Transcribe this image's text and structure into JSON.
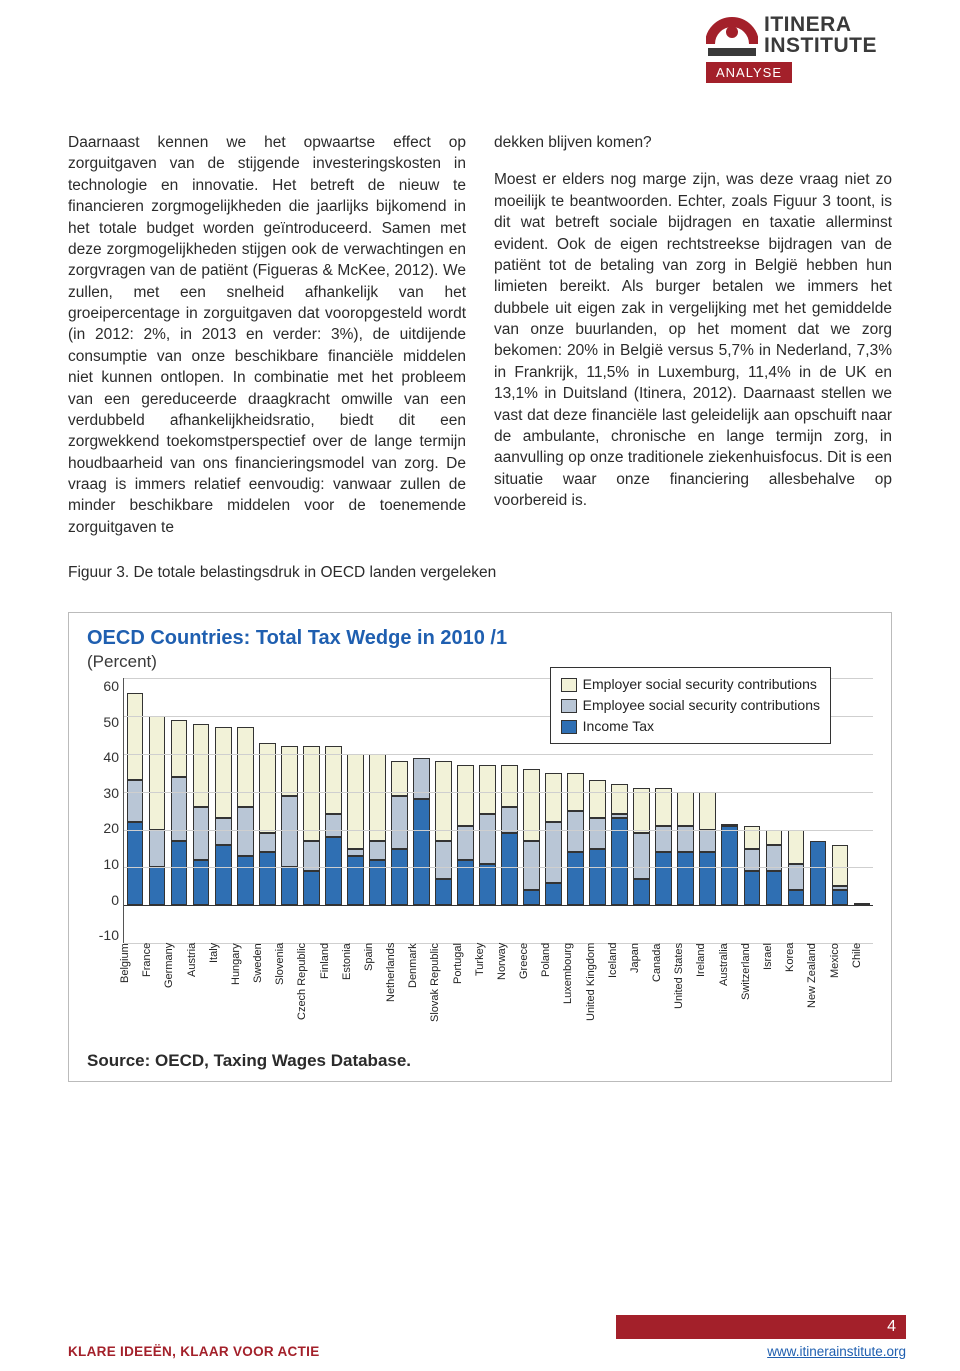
{
  "header": {
    "logo_line1": "ITINERA",
    "logo_line2": "INSTITUTE",
    "tag": "ANALYSE",
    "logo_colors": {
      "arc": "#a3202a",
      "dot": "#a3202a",
      "base": "#3a3a3a"
    }
  },
  "body": {
    "col1": "Daarnaast kennen we het opwaartse effect op zorguitgaven van de stijgende investeringskosten in technologie en innovatie. Het betreft de nieuw te financieren zorgmogelijkheden die jaarlijks bijkomend in het totale budget worden geïntroduceerd. Samen met deze zorgmogelijkheden stijgen ook de verwachtingen en zorgvragen van de patiënt (Figueras & McKee, 2012). We zullen, met een snelheid afhankelijk van het groeipercentage in zorguitgaven dat vooropgesteld wordt (in 2012: 2%, in 2013 en verder: 3%), de uitdijende consumptie van onze beschikbare financiële middelen niet kunnen ontlopen. In combinatie met het probleem van een gereduceerde draagkracht omwille van een verdubbeld afhankelijkheidsratio, biedt dit een zorgwekkend toekomstperspectief over de lange termijn houdbaarheid van ons financieringsmodel van zorg. De vraag is immers relatief eenvoudig: vanwaar zullen de minder beschikbare middelen voor de toenemende zorguitgaven te",
    "col2": "dekken blijven komen?\n\nMoest er elders nog marge zijn, was deze vraag niet zo moeilijk te beantwoorden. Echter, zoals Figuur 3 toont, is dit wat betreft sociale bijdragen en taxatie allerminst evident. Ook de eigen rechtstreekse bijdragen van de patiënt tot de betaling van zorg in België hebben hun limieten bereikt. Als burger betalen we immers het dubbele uit eigen zak in vergelijking met het gemiddelde van onze buurlanden, op het moment dat we zorg bekomen: 20% in België versus 5,7% in Nederland, 7,3% in Frankrijk, 11,5% in Luxemburg, 11,4% in de UK en 13,1% in Duitsland (Itinera, 2012). Daarnaast stellen we vast dat deze financiële last geleidelijk aan opschuift naar de ambulante, chronische en lange termijn zorg, in aanvulling op onze traditionele ziekenhuisfocus. Dit is een situatie waar onze financiering allesbehalve op voorbereid is."
  },
  "figure_caption": "Figuur 3. De totale belastingsdruk in OECD landen vergeleken",
  "chart": {
    "type": "stacked-bar",
    "title": "OECD Countries: Total Tax Wedge in 2010 /1",
    "subtitle": "(Percent)",
    "source": "Source: OECD, Taxing Wages Database.",
    "ylim": [
      -10,
      60
    ],
    "yticks": [
      -10,
      0,
      10,
      20,
      30,
      40,
      50,
      60
    ],
    "grid_color": "#cfcfcf",
    "axis_color": "#333333",
    "background": "#ffffff",
    "legend": [
      {
        "label": "Employer social security contributions",
        "color": "#f2f2d8"
      },
      {
        "label": "Employee social security contributions",
        "color": "#b9c6d6"
      },
      {
        "label": "Income Tax",
        "color": "#2f6fb3"
      }
    ],
    "series_colors": {
      "income_tax": "#2f6fb3",
      "employee_ssc": "#b9c6d6",
      "employer_ssc": "#f2f2d8"
    },
    "bar_border": "#333333",
    "countries": [
      {
        "name": "Belgium",
        "income_tax": 22,
        "employee_ssc": 11,
        "employer_ssc": 23
      },
      {
        "name": "France",
        "income_tax": 10,
        "employee_ssc": 10,
        "employer_ssc": 30
      },
      {
        "name": "Germany",
        "income_tax": 17,
        "employee_ssc": 17,
        "employer_ssc": 15
      },
      {
        "name": "Austria",
        "income_tax": 12,
        "employee_ssc": 14,
        "employer_ssc": 22
      },
      {
        "name": "Italy",
        "income_tax": 16,
        "employee_ssc": 7,
        "employer_ssc": 24
      },
      {
        "name": "Hungary",
        "income_tax": 13,
        "employee_ssc": 13,
        "employer_ssc": 21
      },
      {
        "name": "Sweden",
        "income_tax": 14,
        "employee_ssc": 5,
        "employer_ssc": 24
      },
      {
        "name": "Slovenia",
        "income_tax": 10,
        "employee_ssc": 19,
        "employer_ssc": 13
      },
      {
        "name": "Czech Republic",
        "income_tax": 9,
        "employee_ssc": 8,
        "employer_ssc": 25
      },
      {
        "name": "Finland",
        "income_tax": 18,
        "employee_ssc": 6,
        "employer_ssc": 18
      },
      {
        "name": "Estonia",
        "income_tax": 13,
        "employee_ssc": 2,
        "employer_ssc": 25
      },
      {
        "name": "Spain",
        "income_tax": 12,
        "employee_ssc": 5,
        "employer_ssc": 23
      },
      {
        "name": "Netherlands",
        "income_tax": 15,
        "employee_ssc": 14,
        "employer_ssc": 9
      },
      {
        "name": "Denmark",
        "income_tax": 28,
        "employee_ssc": 11,
        "employer_ssc": 0
      },
      {
        "name": "Slovak Republic",
        "income_tax": 7,
        "employee_ssc": 10,
        "employer_ssc": 21
      },
      {
        "name": "Portugal",
        "income_tax": 12,
        "employee_ssc": 9,
        "employer_ssc": 16
      },
      {
        "name": "Turkey",
        "income_tax": 11,
        "employee_ssc": 13,
        "employer_ssc": 13
      },
      {
        "name": "Norway",
        "income_tax": 19,
        "employee_ssc": 7,
        "employer_ssc": 11
      },
      {
        "name": "Greece",
        "income_tax": 4,
        "employee_ssc": 13,
        "employer_ssc": 19
      },
      {
        "name": "Poland",
        "income_tax": 6,
        "employee_ssc": 16,
        "employer_ssc": 13
      },
      {
        "name": "Luxembourg",
        "income_tax": 14,
        "employee_ssc": 11,
        "employer_ssc": 10
      },
      {
        "name": "United Kingdom",
        "income_tax": 15,
        "employee_ssc": 8,
        "employer_ssc": 10
      },
      {
        "name": "Iceland",
        "income_tax": 23,
        "employee_ssc": 1,
        "employer_ssc": 8
      },
      {
        "name": "Japan",
        "income_tax": 7,
        "employee_ssc": 12,
        "employer_ssc": 12
      },
      {
        "name": "Canada",
        "income_tax": 14,
        "employee_ssc": 7,
        "employer_ssc": 10
      },
      {
        "name": "United States",
        "income_tax": 14,
        "employee_ssc": 7,
        "employer_ssc": 9
      },
      {
        "name": "Ireland",
        "income_tax": 14,
        "employee_ssc": 6,
        "employer_ssc": 10
      },
      {
        "name": "Australia",
        "income_tax": 21,
        "employee_ssc": 0,
        "employer_ssc": 6
      },
      {
        "name": "Switzerland",
        "income_tax": 9,
        "employee_ssc": 6,
        "employer_ssc": 6
      },
      {
        "name": "Israel",
        "income_tax": 9,
        "employee_ssc": 7,
        "employer_ssc": 4
      },
      {
        "name": "Korea",
        "income_tax": 4,
        "employee_ssc": 7,
        "employer_ssc": 9
      },
      {
        "name": "New Zealand",
        "income_tax": 17,
        "employee_ssc": 0,
        "employer_ssc": 0
      },
      {
        "name": "Mexico",
        "income_tax": 4,
        "employee_ssc": 1,
        "employer_ssc": 11
      },
      {
        "name": "Chile",
        "income_tax": 0,
        "employee_ssc": 7,
        "employer_ssc": 0
      }
    ]
  },
  "footer": {
    "left": "KLARE IDEEËN, KLAAR VOOR ACTIE",
    "page_number": "4",
    "link": "www.itinerainstitute.org"
  }
}
